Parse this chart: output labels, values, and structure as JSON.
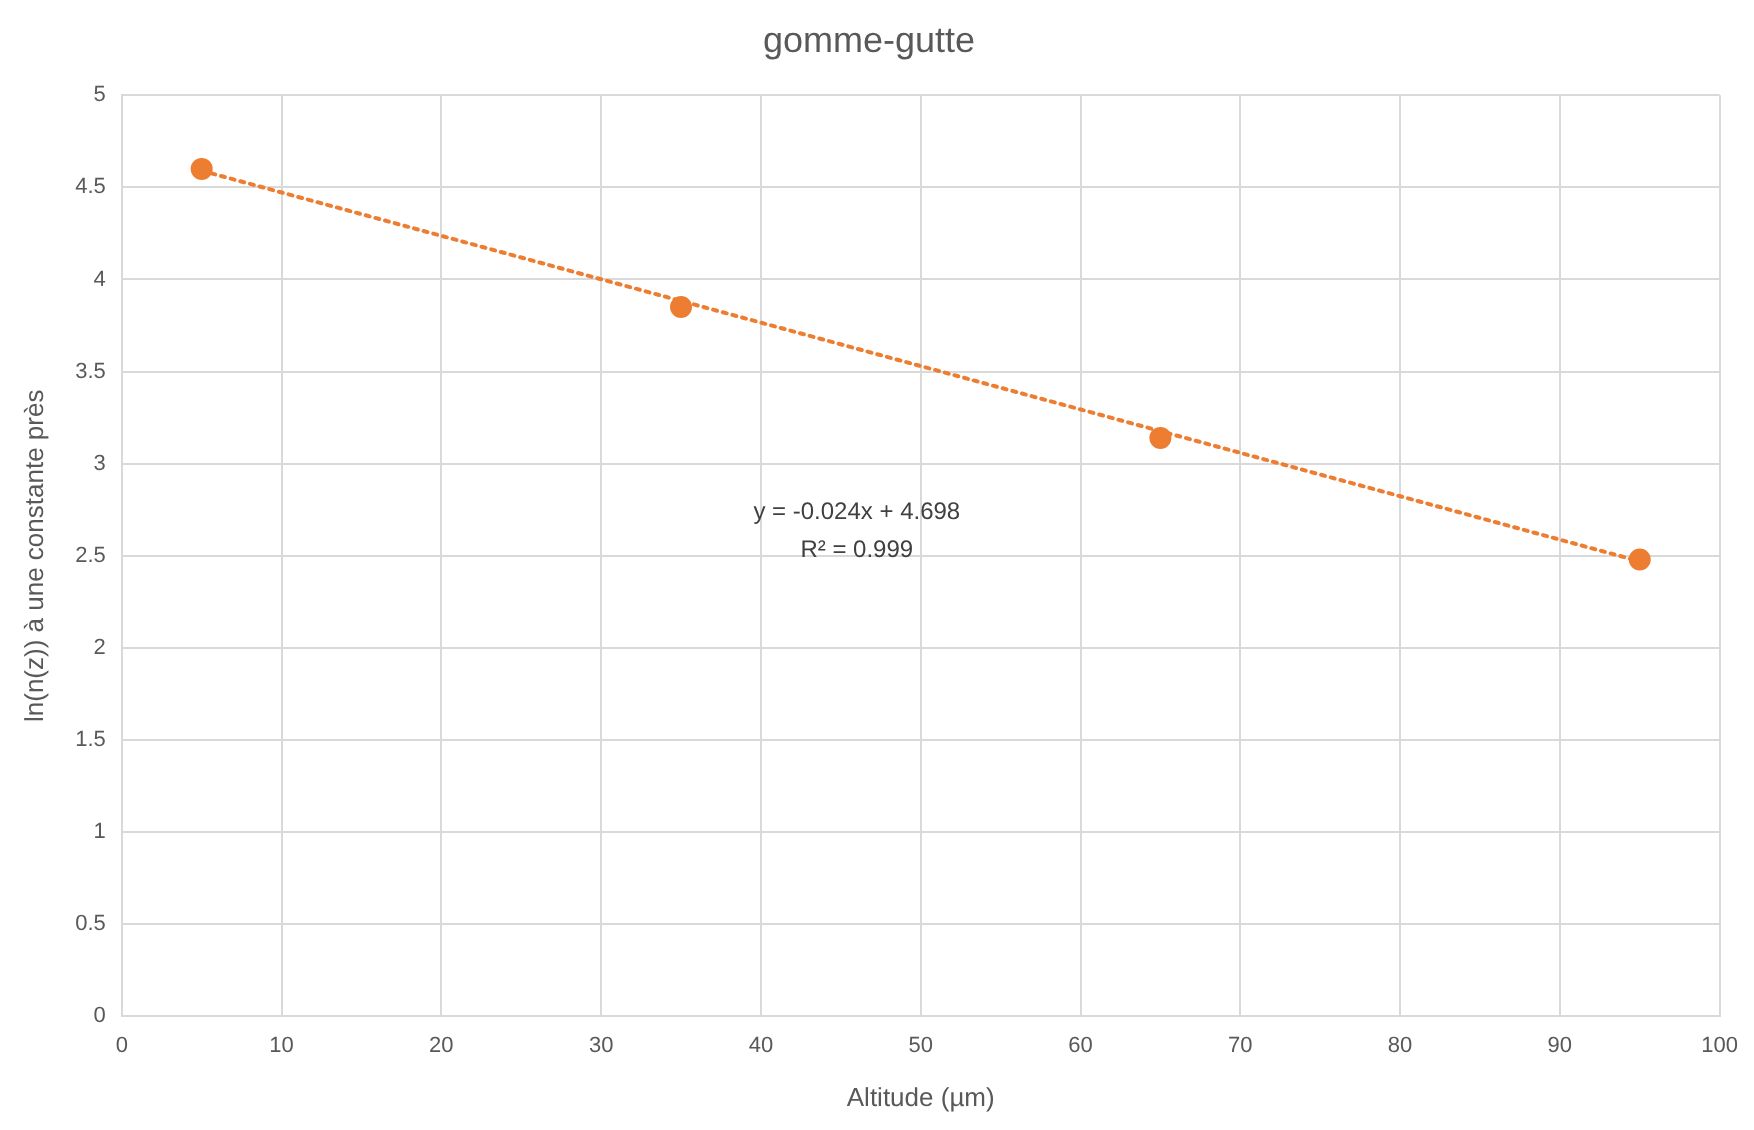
{
  "chart_data": {
    "type": "scatter",
    "title": "gomme-gutte",
    "xlabel": "Altitude (µm)",
    "ylabel": "ln(n(z)) à une constante près",
    "xlim": [
      0,
      100
    ],
    "xticks": [
      0,
      10,
      20,
      30,
      40,
      50,
      60,
      70,
      80,
      90,
      100
    ],
    "ylim": [
      0,
      5
    ],
    "yticks": [
      0,
      0.5,
      1,
      1.5,
      2,
      2.5,
      3,
      3.5,
      4,
      4.5,
      5
    ],
    "grid": true,
    "legend": false,
    "marker": "circle",
    "annotations": [
      "y = -0.024x + 4.698",
      "R² = 0.999"
    ],
    "series": [
      {
        "color": "#ed7d31",
        "x": [
          5,
          35,
          65,
          95
        ],
        "values": [
          4.6,
          3.85,
          3.14,
          2.48
        ]
      },
      {
        "type": "line",
        "color": "#ed7d31",
        "line_style": "dotted",
        "marker": "none",
        "x": [
          5,
          95
        ],
        "values": [
          4.59,
          2.47
        ]
      }
    ]
  }
}
